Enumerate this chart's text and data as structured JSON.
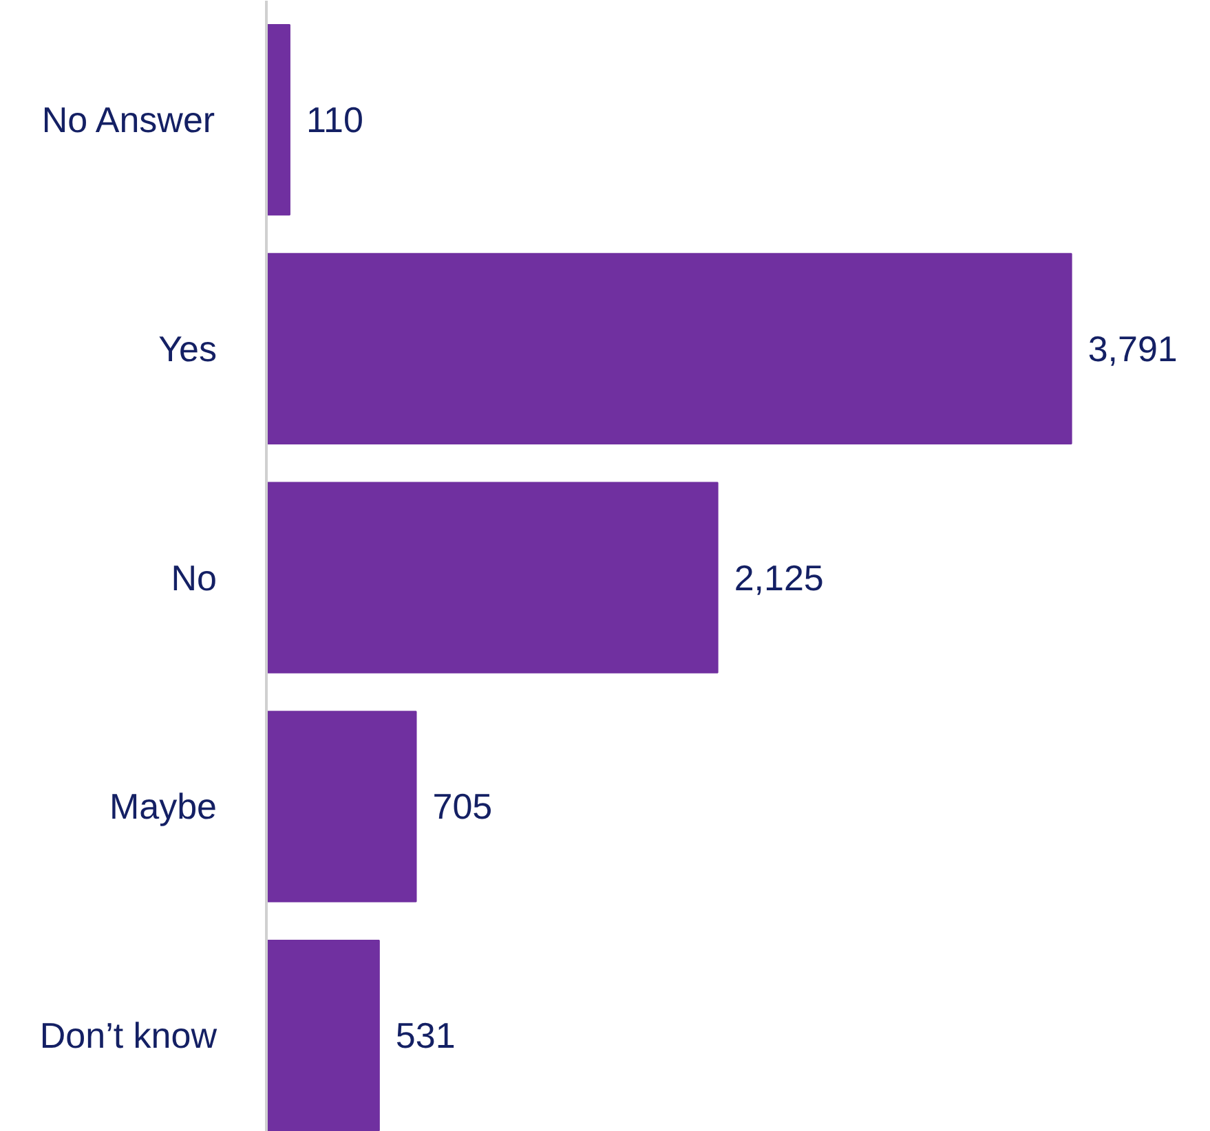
{
  "chart_data": {
    "type": "bar",
    "orientation": "horizontal",
    "categories": [
      "No Answer",
      "Yes",
      "No",
      "Maybe",
      "Don’t know"
    ],
    "values": [
      110,
      3791,
      2125,
      705,
      531
    ],
    "value_labels": [
      "110",
      "3,791",
      "2,125",
      "705",
      "531"
    ],
    "color": "#7030a0"
  }
}
